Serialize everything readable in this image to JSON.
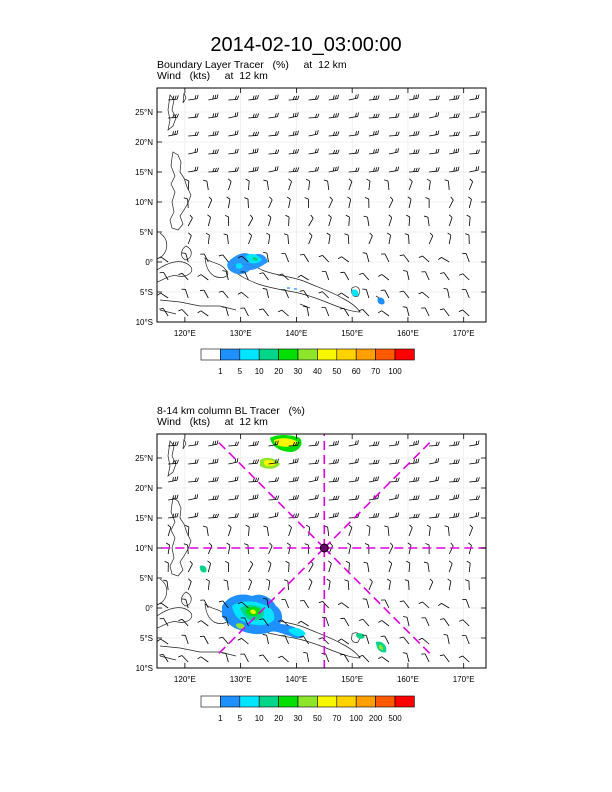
{
  "title": "2014-02-10_03:00:00",
  "panels": [
    {
      "line1": "Boundary Layer Tracer   (%)     at  12 km",
      "line2": "Wind   (kts)     at  12 km",
      "lat_ticks": [
        "25°N",
        "20°N",
        "15°N",
        "10°N",
        "5°N",
        "0°",
        "5°S",
        "10°S"
      ],
      "lon_ticks": [
        "120°E",
        "130°E",
        "140°E",
        "150°E",
        "160°E",
        "170°E"
      ],
      "colorbar": {
        "labels": [
          "1",
          "5",
          "10",
          "20",
          "30",
          "40",
          "50",
          "60",
          "70",
          "100"
        ],
        "colors": [
          "#ffffff",
          "#1e90ff",
          "#00e5ff",
          "#00d58a",
          "#00e000",
          "#8ee62c",
          "#f7f700",
          "#ffd200",
          "#ffa000",
          "#ff5a00",
          "#ff0000"
        ]
      }
    },
    {
      "line1": "8-14 km column BL Tracer   (%)",
      "line2": "Wind   (kts)     at  12 km",
      "lat_ticks": [
        "25°N",
        "20°N",
        "15°N",
        "10°N",
        "5°N",
        "0°",
        "5°S",
        "10°S"
      ],
      "lon_ticks": [
        "120°E",
        "130°E",
        "140°E",
        "150°E",
        "160°E",
        "170°E"
      ],
      "colorbar": {
        "labels": [
          "1",
          "5",
          "10",
          "20",
          "30",
          "50",
          "70",
          "100",
          "200",
          "500"
        ],
        "colors": [
          "#ffffff",
          "#1e90ff",
          "#00e5ff",
          "#00d58a",
          "#00e000",
          "#8ee62c",
          "#f7f700",
          "#ffd200",
          "#ffa000",
          "#ff5a00",
          "#ff0000"
        ]
      }
    }
  ],
  "map_extent": {
    "lon": [
      115,
      174
    ],
    "lat": [
      -10,
      29
    ]
  },
  "guide_line_color": "#e000e0",
  "storm_center": {
    "lon": 145,
    "lat": 10
  }
}
